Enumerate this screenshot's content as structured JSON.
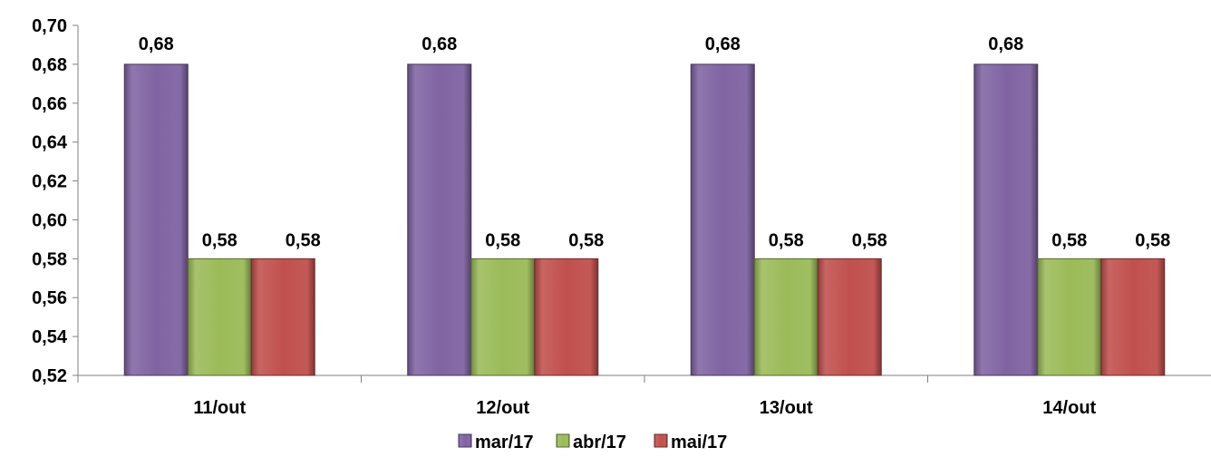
{
  "chart_data": {
    "type": "bar",
    "categories": [
      "11/out",
      "12/out",
      "13/out",
      "14/out"
    ],
    "series": [
      {
        "name": "mar/17",
        "color": "#8064A2",
        "values": [
          0.68,
          0.68,
          0.68,
          0.68
        ],
        "labels": [
          "0,68",
          "0,68",
          "0,68",
          "0,68"
        ]
      },
      {
        "name": "abr/17",
        "color": "#9BBB59",
        "values": [
          0.58,
          0.58,
          0.58,
          0.58
        ],
        "labels": [
          "0,58",
          "0,58",
          "0,58",
          "0,58"
        ]
      },
      {
        "name": "mai/17",
        "color": "#C0504D",
        "values": [
          0.58,
          0.58,
          0.58,
          0.58
        ],
        "labels": [
          "0,58",
          "0,58",
          "0,58",
          "0,58"
        ]
      }
    ],
    "ylim": [
      0.52,
      0.7
    ],
    "yticks": [
      0.52,
      0.54,
      0.56,
      0.58,
      0.6,
      0.62,
      0.64,
      0.66,
      0.68,
      0.7
    ],
    "ytick_labels": [
      "0,52",
      "0,54",
      "0,56",
      "0,58",
      "0,60",
      "0,62",
      "0,64",
      "0,66",
      "0,68",
      "0,70"
    ],
    "grid": false,
    "legend": "bottom",
    "title": "",
    "xlabel": "",
    "ylabel": ""
  }
}
